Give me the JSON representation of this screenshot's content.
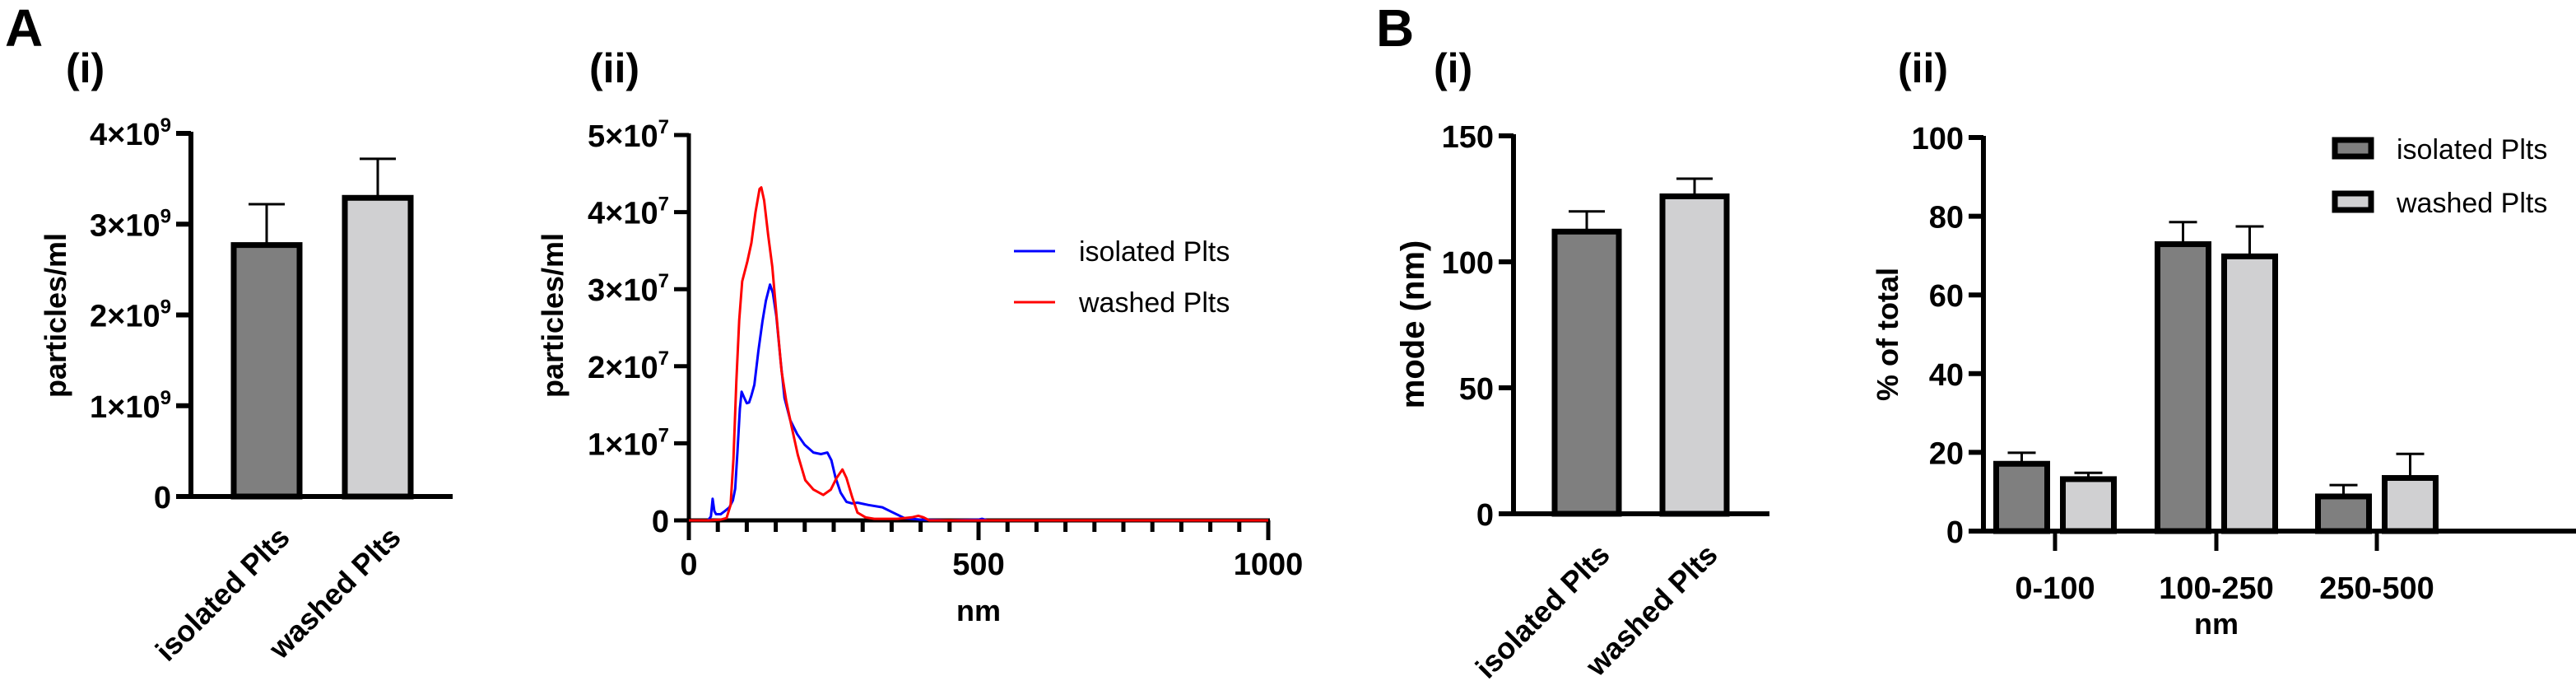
{
  "figure": {
    "panel_letters": [
      "A",
      "B"
    ],
    "colors": {
      "isolated_bar": "#7f7f7f",
      "washed_bar": "#d0d0d2",
      "isolated_line": "#0000ff",
      "washed_line": "#ff0000",
      "axis": "#000000"
    }
  },
  "chart_data": [
    {
      "id": "A-i",
      "panel": "A",
      "sublabel": "(i)",
      "type": "bar",
      "title": "",
      "xlabel": "",
      "ylabel": "particles/ml",
      "categories": [
        "isolated Plts",
        "washed Plts"
      ],
      "values": [
        2770000000.0,
        3290000000.0
      ],
      "errors_upper": [
        3220000000.0,
        3720000000.0
      ],
      "ylim": [
        0,
        4000000000.0
      ],
      "yticks": [
        0,
        1000000000.0,
        2000000000.0,
        3000000000.0,
        4000000000.0
      ],
      "ytick_labels": [
        {
          "base": "0",
          "exp": ""
        },
        {
          "base": "1×10",
          "exp": "9"
        },
        {
          "base": "2×10",
          "exp": "9"
        },
        {
          "base": "3×10",
          "exp": "9"
        },
        {
          "base": "4×10",
          "exp": "9"
        }
      ],
      "grid": false
    },
    {
      "id": "A-ii",
      "panel": "A",
      "sublabel": "(ii)",
      "type": "line",
      "title": "",
      "xlabel": "nm",
      "ylabel": "particles/ml",
      "xlim": [
        0,
        1000
      ],
      "ylim": [
        0,
        50000000.0
      ],
      "xticks": [
        0,
        500,
        1000
      ],
      "xtick_labels": [
        "0",
        "500",
        "1000"
      ],
      "minor_xtick_step": 50,
      "yticks": [
        0,
        10000000.0,
        20000000.0,
        30000000.0,
        40000000.0,
        50000000.0
      ],
      "ytick_labels": [
        {
          "base": "0",
          "exp": ""
        },
        {
          "base": "1×10",
          "exp": "7"
        },
        {
          "base": "2×10",
          "exp": "7"
        },
        {
          "base": "3×10",
          "exp": "7"
        },
        {
          "base": "4×10",
          "exp": "7"
        },
        {
          "base": "5×10",
          "exp": "7"
        }
      ],
      "legend_position": "right",
      "grid": false,
      "series": [
        {
          "name": "isolated Plts",
          "color": "#0000ff",
          "points": [
            [
              0,
              0
            ],
            [
              33,
              0
            ],
            [
              38,
              500000.0
            ],
            [
              41,
              2800000.0
            ],
            [
              44,
              1200000.0
            ],
            [
              47,
              800000.0
            ],
            [
              55,
              800000.0
            ],
            [
              62,
              1200000.0
            ],
            [
              70,
              1700000.0
            ],
            [
              76,
              2600000.0
            ],
            [
              80,
              4100000.0
            ],
            [
              84,
              9000000.0
            ],
            [
              88,
              14500000.0
            ],
            [
              91,
              16700000.0
            ],
            [
              95,
              16000000.0
            ],
            [
              100,
              15200000.0
            ],
            [
              104,
              15300000.0
            ],
            [
              108,
              16200000.0
            ],
            [
              113,
              17600000.0
            ],
            [
              120,
              22000000.0
            ],
            [
              127,
              25800000.0
            ],
            [
              133,
              28500000.0
            ],
            [
              140,
              30600000.0
            ],
            [
              145,
              29500000.0
            ],
            [
              151,
              26500000.0
            ],
            [
              158,
              21000000.0
            ],
            [
              165,
              15900000.0
            ],
            [
              175,
              13000000.0
            ],
            [
              187,
              11200000.0
            ],
            [
              200,
              9800000.0
            ],
            [
              215,
              8800000.0
            ],
            [
              228,
              8600000.0
            ],
            [
              239,
              8800000.0
            ],
            [
              246,
              7800000.0
            ],
            [
              253,
              5600000.0
            ],
            [
              262,
              3600000.0
            ],
            [
              272,
              2400000.0
            ],
            [
              282,
              2200000.0
            ],
            [
              291,
              2300000.0
            ],
            [
              310,
              2000000.0
            ],
            [
              334,
              1700000.0
            ],
            [
              350,
              1100000.0
            ],
            [
              372,
              300000.0
            ],
            [
              400,
              100000.0
            ],
            [
              450,
              0
            ],
            [
              500,
              100000.0
            ],
            [
              506,
              200000.0
            ],
            [
              515,
              0
            ],
            [
              829,
              0
            ]
          ]
        },
        {
          "name": "washed Plts",
          "color": "#ff0000",
          "points": [
            [
              0,
              0
            ],
            [
              34,
              0
            ],
            [
              55,
              100000.0
            ],
            [
              65,
              300000.0
            ],
            [
              72,
              2000000.0
            ],
            [
              77,
              8000000.0
            ],
            [
              82,
              18000000.0
            ],
            [
              87,
              26000000.0
            ],
            [
              92,
              31000000.0
            ],
            [
              101,
              33600000.0
            ],
            [
              108,
              36000000.0
            ],
            [
              115,
              40000000.0
            ],
            [
              122,
              43000000.0
            ],
            [
              125,
              43200000.0
            ],
            [
              130,
              41500000.0
            ],
            [
              137,
              37000000.0
            ],
            [
              144,
              32900000.0
            ],
            [
              152,
              26000000.0
            ],
            [
              160,
              19400000.0
            ],
            [
              168,
              15500000.0
            ],
            [
              177,
              12300000.0
            ],
            [
              188,
              8500000.0
            ],
            [
              201,
              5200000.0
            ],
            [
              215,
              4000000.0
            ],
            [
              232,
              3300000.0
            ],
            [
              245,
              4000000.0
            ],
            [
              255,
              5500000.0
            ],
            [
              265,
              6600000.0
            ],
            [
              272,
              5500000.0
            ],
            [
              282,
              3000000.0
            ],
            [
              291,
              1000000.0
            ],
            [
              305,
              400000.0
            ],
            [
              320,
              200000.0
            ],
            [
              360,
              200000.0
            ],
            [
              385,
              400000.0
            ],
            [
              396,
              600000.0
            ],
            [
              405,
              400000.0
            ],
            [
              415,
              0
            ],
            [
              1000,
              0
            ]
          ]
        }
      ]
    },
    {
      "id": "B-i",
      "panel": "B",
      "sublabel": "(i)",
      "type": "bar",
      "title": "",
      "xlabel": "",
      "ylabel": "mode (nm)",
      "categories": [
        "isolated Plts",
        "washed Plts"
      ],
      "values": [
        112,
        126
      ],
      "errors_upper": [
        120,
        133
      ],
      "ylim": [
        0,
        150
      ],
      "yticks": [
        0,
        50,
        100,
        150
      ],
      "ytick_labels": [
        "0",
        "50",
        "100",
        "150"
      ],
      "grid": false
    },
    {
      "id": "B-ii",
      "panel": "B",
      "sublabel": "(ii)",
      "type": "bar",
      "title": "",
      "xlabel": "nm",
      "ylabel": "% of total",
      "categories": [
        "0-100",
        "100-250",
        "250-500"
      ],
      "ylim": [
        0,
        100
      ],
      "yticks": [
        0,
        20,
        40,
        60,
        80,
        100
      ],
      "ytick_labels": [
        "0",
        "20",
        "40",
        "60",
        "80",
        "100"
      ],
      "legend_position": "top-right",
      "grid": false,
      "series": [
        {
          "name": "isolated Plts",
          "color": "#7f7f7f",
          "values": [
            17.1,
            72.9,
            8.8
          ],
          "errors_upper": [
            19.9,
            78.5,
            11.7
          ]
        },
        {
          "name": "washed Plts",
          "color": "#d0d0d2",
          "values": [
            13.2,
            69.8,
            13.5
          ],
          "errors_upper": [
            14.8,
            77.4,
            19.6
          ]
        }
      ]
    }
  ]
}
